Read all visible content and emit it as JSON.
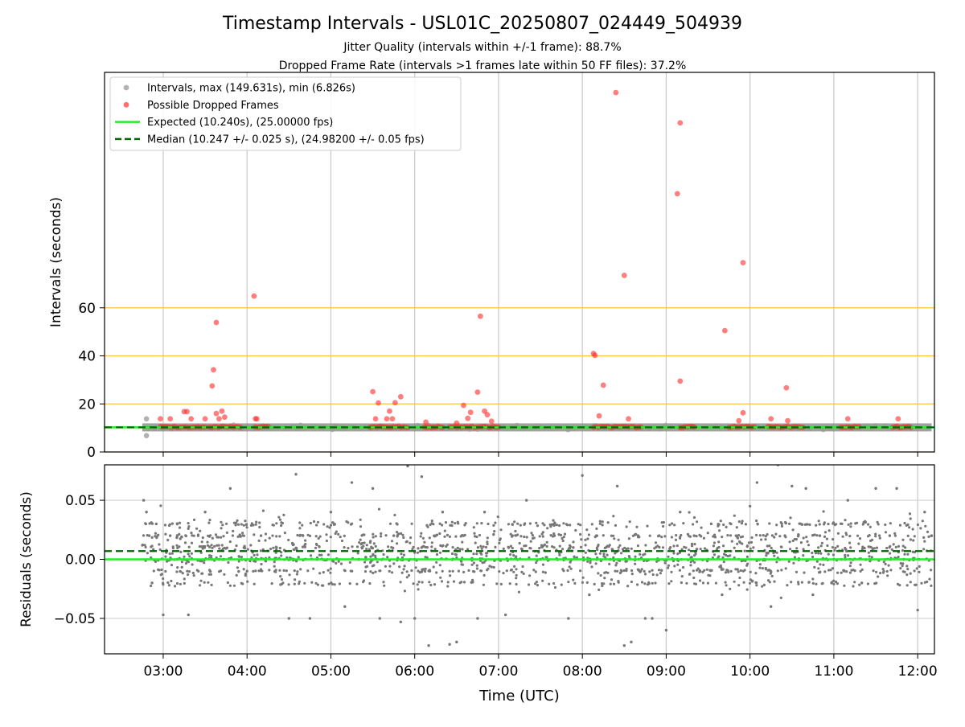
{
  "title": "Timestamp Intervals - USL01C_20250807_024449_504939",
  "subtitle_lines": [
    "Jitter Quality (intervals within +/-1 frame): 88.7%",
    "Dropped Frame Rate (intervals >1 frames late within 50 FF files): 37.2%"
  ],
  "chart_data": [
    {
      "type": "scatter",
      "name": "top-panel",
      "ylabel": "Intervals (seconds)",
      "xlim": [
        "02:18",
        "12:12"
      ],
      "ylim": [
        0,
        158
      ],
      "yticks": [
        0,
        20,
        40,
        60
      ],
      "xticks": [
        "03:00",
        "04:00",
        "05:00",
        "06:00",
        "07:00",
        "08:00",
        "09:00",
        "10:00",
        "11:00",
        "12:00"
      ],
      "grid": "vertical lines at hour ticks; orange horizontal lines at 0, 20, 40, 60",
      "hlines": [
        0,
        20,
        40,
        60
      ],
      "legend_position": "upper-left",
      "legend": [
        {
          "label": "Intervals, max (149.631s), min (6.826s)",
          "kind": "marker",
          "color": "#a0a0a0"
        },
        {
          "label": "Possible Dropped Frames",
          "kind": "marker",
          "color": "#ff4a4a"
        },
        {
          "label": "Expected (10.240s), (25.00000 fps)",
          "kind": "solid",
          "color": "#22ee22"
        },
        {
          "label": "Median (10.247 +/- 0.025 s), (24.98200 +/- 0.05 fps)",
          "kind": "dashed",
          "color": "#006400"
        }
      ],
      "expected": 10.24,
      "median": 10.247,
      "intervals_range": [
        "02:45",
        "12:10"
      ],
      "gray_points": [
        [
          "02:48",
          13.8
        ],
        [
          "02:48",
          6.8
        ],
        [
          "06:10",
          11.0
        ],
        [
          "06:45",
          9.5
        ]
      ],
      "dropped_points": [
        [
          "02:58",
          13.8
        ],
        [
          "03:05",
          13.8
        ],
        [
          "03:15",
          16.8
        ],
        [
          "03:17",
          16.8
        ],
        [
          "03:20",
          13.8
        ],
        [
          "03:30",
          13.8
        ],
        [
          "03:35",
          27.5
        ],
        [
          "03:36",
          34.2
        ],
        [
          "03:38",
          53.9
        ],
        [
          "03:38",
          16.0
        ],
        [
          "03:40",
          13.8
        ],
        [
          "03:42",
          17.0
        ],
        [
          "03:44",
          14.5
        ],
        [
          "04:05",
          64.9
        ],
        [
          "04:06",
          13.8
        ],
        [
          "04:07",
          13.8
        ],
        [
          "05:30",
          25.1
        ],
        [
          "05:32",
          13.8
        ],
        [
          "05:34",
          20.4
        ],
        [
          "05:40",
          13.8
        ],
        [
          "05:42",
          17.0
        ],
        [
          "05:44",
          13.8
        ],
        [
          "05:46",
          20.5
        ],
        [
          "05:50",
          23.0
        ],
        [
          "06:08",
          12.4
        ],
        [
          "06:30",
          12.0
        ],
        [
          "06:35",
          19.4
        ],
        [
          "06:38",
          14.0
        ],
        [
          "06:40",
          16.5
        ],
        [
          "06:45",
          24.9
        ],
        [
          "06:47",
          56.5
        ],
        [
          "06:50",
          17.0
        ],
        [
          "06:52",
          15.5
        ],
        [
          "06:55",
          12.8
        ],
        [
          "08:08",
          41.0
        ],
        [
          "08:09",
          40.2
        ],
        [
          "08:12",
          15.0
        ],
        [
          "08:15",
          27.8
        ],
        [
          "08:24",
          149.6
        ],
        [
          "08:30",
          73.5
        ],
        [
          "08:33",
          13.8
        ],
        [
          "09:08",
          107.5
        ],
        [
          "09:10",
          29.5
        ],
        [
          "09:10",
          137.0
        ],
        [
          "09:42",
          50.5
        ],
        [
          "09:52",
          13.0
        ],
        [
          "09:55",
          78.8
        ],
        [
          "09:55",
          16.3
        ],
        [
          "10:15",
          13.8
        ],
        [
          "10:26",
          26.7
        ],
        [
          "10:27",
          13.0
        ],
        [
          "11:10",
          13.8
        ],
        [
          "11:46",
          13.8
        ]
      ],
      "dropped_clusters": [
        [
          "02:58",
          "03:30"
        ],
        [
          "03:33",
          "03:55"
        ],
        [
          "04:06",
          "04:15"
        ],
        [
          "05:28",
          "05:55"
        ],
        [
          "06:07",
          "06:20"
        ],
        [
          "06:25",
          "07:00"
        ],
        [
          "08:08",
          "08:42"
        ],
        [
          "09:10",
          "09:20"
        ],
        [
          "09:45",
          "10:03"
        ],
        [
          "10:13",
          "10:38"
        ],
        [
          "11:05",
          "11:18"
        ],
        [
          "11:42",
          "11:55"
        ]
      ]
    },
    {
      "type": "scatter",
      "name": "residuals-panel",
      "xlabel": "Time (UTC)",
      "ylabel": "Residuals (seconds)",
      "xlim": [
        "02:18",
        "12:12"
      ],
      "ylim": [
        -0.08,
        0.08
      ],
      "yticks": [
        0.05,
        0.0,
        -0.05
      ],
      "ytick_labels": [
        "0.05",
        "0.00",
        "−0.05"
      ],
      "xticks": [
        "03:00",
        "04:00",
        "05:00",
        "06:00",
        "07:00",
        "08:00",
        "09:00",
        "10:00",
        "11:00",
        "12:00"
      ],
      "grid": "both axes",
      "expected": 0.0,
      "median": 0.007,
      "points": [
        [
          "02:46",
          0.05
        ],
        [
          "02:48",
          0.04
        ],
        [
          "02:50",
          0.02
        ],
        [
          "02:52",
          -0.02
        ],
        [
          "02:55",
          0.03
        ],
        [
          "03:00",
          -0.047
        ],
        [
          "03:05",
          0.02
        ],
        [
          "03:10",
          0.0
        ],
        [
          "03:18",
          -0.047
        ],
        [
          "03:25",
          0.02
        ],
        [
          "03:30",
          0.04
        ],
        [
          "03:40",
          0.0
        ],
        [
          "03:48",
          0.06
        ],
        [
          "03:55",
          0.02
        ],
        [
          "04:00",
          -0.01
        ],
        [
          "04:10",
          0.02
        ],
        [
          "04:20",
          0.0
        ],
        [
          "04:30",
          -0.05
        ],
        [
          "04:35",
          0.072
        ],
        [
          "04:40",
          0.02
        ],
        [
          "04:45",
          -0.05
        ],
        [
          "04:50",
          0.0
        ],
        [
          "05:00",
          0.04
        ],
        [
          "05:10",
          -0.04
        ],
        [
          "05:15",
          0.065
        ],
        [
          "05:20",
          0.0
        ],
        [
          "05:30",
          0.06
        ],
        [
          "05:35",
          -0.05
        ],
        [
          "05:45",
          0.02
        ],
        [
          "05:50",
          -0.053
        ],
        [
          "05:55",
          0.079
        ],
        [
          "06:00",
          -0.05
        ],
        [
          "06:05",
          0.07
        ],
        [
          "06:10",
          -0.073
        ],
        [
          "06:15",
          0.02
        ],
        [
          "06:20",
          0.04
        ],
        [
          "06:25",
          -0.072
        ],
        [
          "06:30",
          -0.07
        ],
        [
          "06:35",
          0.02
        ],
        [
          "06:45",
          -0.05
        ],
        [
          "06:50",
          0.04
        ],
        [
          "07:00",
          0.0
        ],
        [
          "07:05",
          -0.047
        ],
        [
          "07:10",
          0.02
        ],
        [
          "07:20",
          0.05
        ],
        [
          "07:30",
          0.0
        ],
        [
          "07:40",
          0.02
        ],
        [
          "07:50",
          -0.05
        ],
        [
          "08:00",
          0.071
        ],
        [
          "08:05",
          -0.03
        ],
        [
          "08:10",
          0.02
        ],
        [
          "08:20",
          0.0
        ],
        [
          "08:25",
          0.062
        ],
        [
          "08:30",
          -0.073
        ],
        [
          "08:35",
          -0.07
        ],
        [
          "08:40",
          0.02
        ],
        [
          "08:45",
          -0.05
        ],
        [
          "08:50",
          -0.05
        ],
        [
          "08:55",
          0.02
        ],
        [
          "09:00",
          -0.06
        ],
        [
          "09:05",
          0.0
        ],
        [
          "09:10",
          0.04
        ],
        [
          "09:20",
          0.02
        ],
        [
          "09:30",
          0.0
        ],
        [
          "09:40",
          -0.03
        ],
        [
          "09:50",
          0.02
        ],
        [
          "10:00",
          0.045
        ],
        [
          "10:05",
          0.065
        ],
        [
          "10:10",
          0.0
        ],
        [
          "10:15",
          -0.04
        ],
        [
          "10:20",
          0.08
        ],
        [
          "10:25",
          0.02
        ],
        [
          "10:30",
          0.062
        ],
        [
          "10:35",
          0.0
        ],
        [
          "10:40",
          0.06
        ],
        [
          "10:45",
          -0.03
        ],
        [
          "10:50",
          0.02
        ],
        [
          "11:00",
          0.0
        ],
        [
          "11:10",
          0.05
        ],
        [
          "11:20",
          -0.02
        ],
        [
          "11:30",
          0.06
        ],
        [
          "11:40",
          0.02
        ],
        [
          "11:45",
          0.06
        ],
        [
          "11:50",
          0.0
        ],
        [
          "12:00",
          -0.043
        ],
        [
          "12:05",
          0.04
        ],
        [
          "12:10",
          0.02
        ]
      ]
    }
  ]
}
